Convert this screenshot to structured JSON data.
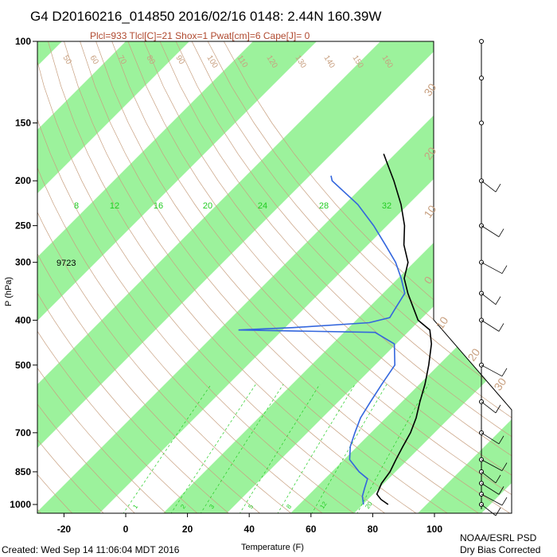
{
  "title": "G4 D20160216_014850 2016/02/16 0148:  2.44N 160.39W",
  "subtitle": "Plcl=933 Tlcl[C]=21 Shox=1 Pwat[cm]=6 Cape[J]= 0",
  "footer": {
    "created": "Created: Wed Sep 14 11:06:04 MDT 2016",
    "org": "NOAA/ESRL PSD",
    "note": "Dry Bias Corrected"
  },
  "height_label": "9723",
  "colors": {
    "band_green": "#9cf29c",
    "temperature": "#000000",
    "dewpoint": "#3366dd",
    "adiabat": "#c8a080",
    "mixing": "#22cc22"
  },
  "chart_data": {
    "type": "line",
    "subtype": "skew-T log-P",
    "xlabel": "Temperature (F)",
    "ylabel": "P (hPa)",
    "xlim": [
      -30,
      125
    ],
    "ylim": [
      1050,
      100
    ],
    "yscale": "log",
    "x_ticks": [
      "-20",
      "0",
      "20",
      "40",
      "60",
      "80",
      "100"
    ],
    "y_ticks": [
      "100",
      "150",
      "200",
      "250",
      "300",
      "400",
      "500",
      "700",
      "850",
      "1000"
    ],
    "green_band_labels": [
      "8",
      "12",
      "16",
      "20",
      "24",
      "28",
      "32"
    ],
    "theta_labels_top": [
      "50",
      "60",
      "70",
      "80",
      "90",
      "100",
      "110",
      "120",
      "130",
      "140",
      "150",
      "160"
    ],
    "theta_labels_right": [
      "30",
      "20",
      "10",
      "0",
      "10",
      "20",
      "30"
    ],
    "mixing_ratio_labels": [
      "1",
      "2",
      "3",
      "5",
      "8",
      "12",
      "20"
    ],
    "series": [
      {
        "points": [
          {
            "p": 1000,
            "t": 85
          },
          {
            "p": 975,
            "t": 81
          },
          {
            "p": 950,
            "t": 78
          },
          {
            "p": 900,
            "t": 76
          },
          {
            "p": 850,
            "t": 75
          },
          {
            "p": 800,
            "t": 73
          },
          {
            "p": 750,
            "t": 71
          },
          {
            "p": 700,
            "t": 69
          },
          {
            "p": 650,
            "t": 66
          },
          {
            "p": 600,
            "t": 62
          },
          {
            "p": 550,
            "t": 58
          },
          {
            "p": 500,
            "t": 53
          },
          {
            "p": 450,
            "t": 47
          },
          {
            "p": 420,
            "t": 42
          },
          {
            "p": 400,
            "t": 35
          },
          {
            "p": 370,
            "t": 28
          },
          {
            "p": 350,
            "t": 23
          },
          {
            "p": 325,
            "t": 17
          },
          {
            "p": 300,
            "t": 13
          },
          {
            "p": 275,
            "t": 6
          },
          {
            "p": 250,
            "t": 0
          },
          {
            "p": 225,
            "t": -8
          },
          {
            "p": 200,
            "t": -18
          },
          {
            "p": 185,
            "t": -25
          },
          {
            "p": 175,
            "t": -30
          }
        ]
      },
      {
        "points": [
          {
            "p": 1000,
            "t": 77
          },
          {
            "p": 960,
            "t": 74
          },
          {
            "p": 920,
            "t": 72
          },
          {
            "p": 880,
            "t": 70
          },
          {
            "p": 850,
            "t": 65
          },
          {
            "p": 800,
            "t": 58
          },
          {
            "p": 750,
            "t": 54
          },
          {
            "p": 700,
            "t": 51
          },
          {
            "p": 650,
            "t": 48
          },
          {
            "p": 600,
            "t": 46
          },
          {
            "p": 550,
            "t": 44
          },
          {
            "p": 500,
            "t": 42
          },
          {
            "p": 450,
            "t": 35
          },
          {
            "p": 425,
            "t": 25
          },
          {
            "p": 420,
            "t": -20
          },
          {
            "p": 415,
            "t": -3
          },
          {
            "p": 405,
            "t": 20
          },
          {
            "p": 395,
            "t": 25
          },
          {
            "p": 380,
            "t": 24
          },
          {
            "p": 350,
            "t": 22
          },
          {
            "p": 325,
            "t": 16
          },
          {
            "p": 300,
            "t": 9
          },
          {
            "p": 275,
            "t": 0
          },
          {
            "p": 250,
            "t": -10
          },
          {
            "p": 225,
            "t": -22
          },
          {
            "p": 200,
            "t": -38
          },
          {
            "p": 195,
            "t": -40
          }
        ]
      }
    ],
    "wind_levels_hpa": [
      100,
      120,
      150,
      200,
      250,
      300,
      350,
      400,
      500,
      600,
      700,
      800,
      850,
      900,
      950,
      1000
    ]
  }
}
